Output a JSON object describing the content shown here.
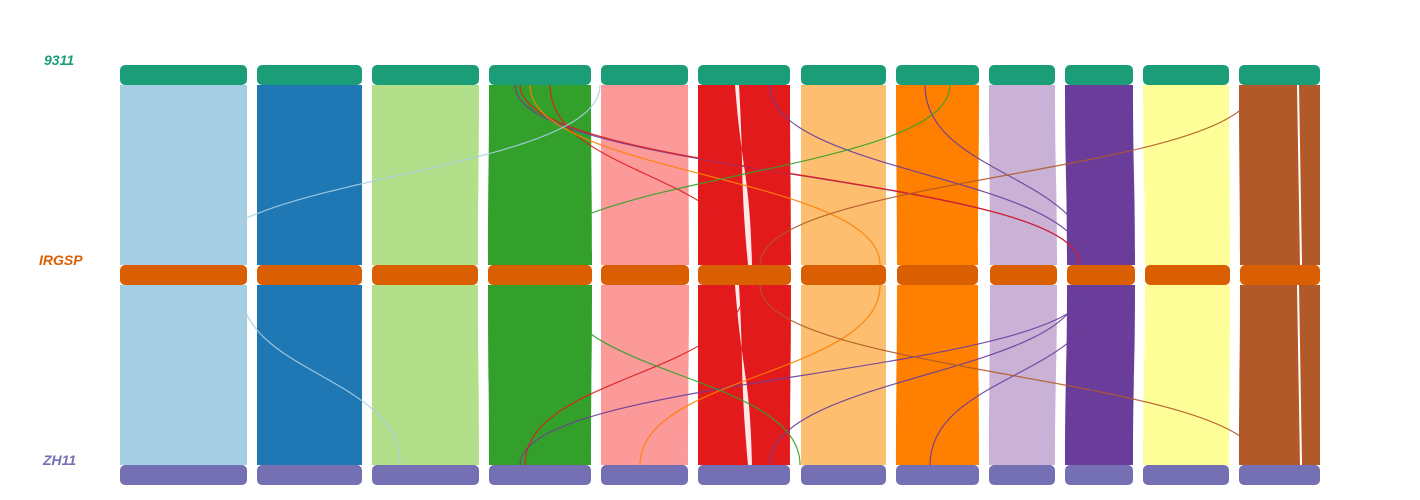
{
  "genomes": [
    {
      "id": "g1",
      "label": "9311",
      "color": "#1b9e77"
    },
    {
      "id": "g2",
      "label": "IRGSP",
      "color": "#d95f02"
    },
    {
      "id": "g3",
      "label": "ZH11",
      "color": "#7570b3"
    }
  ],
  "chromosome_colors": [
    "#a6cee3",
    "#1f78b4",
    "#b2df8a",
    "#33a02c",
    "#fb9a99",
    "#e31a1c",
    "#fdbf6f",
    "#ff7f00",
    "#cab2d6",
    "#6a3d9a",
    "#ffff99",
    "#b15928"
  ],
  "chromosome_count": 12
}
